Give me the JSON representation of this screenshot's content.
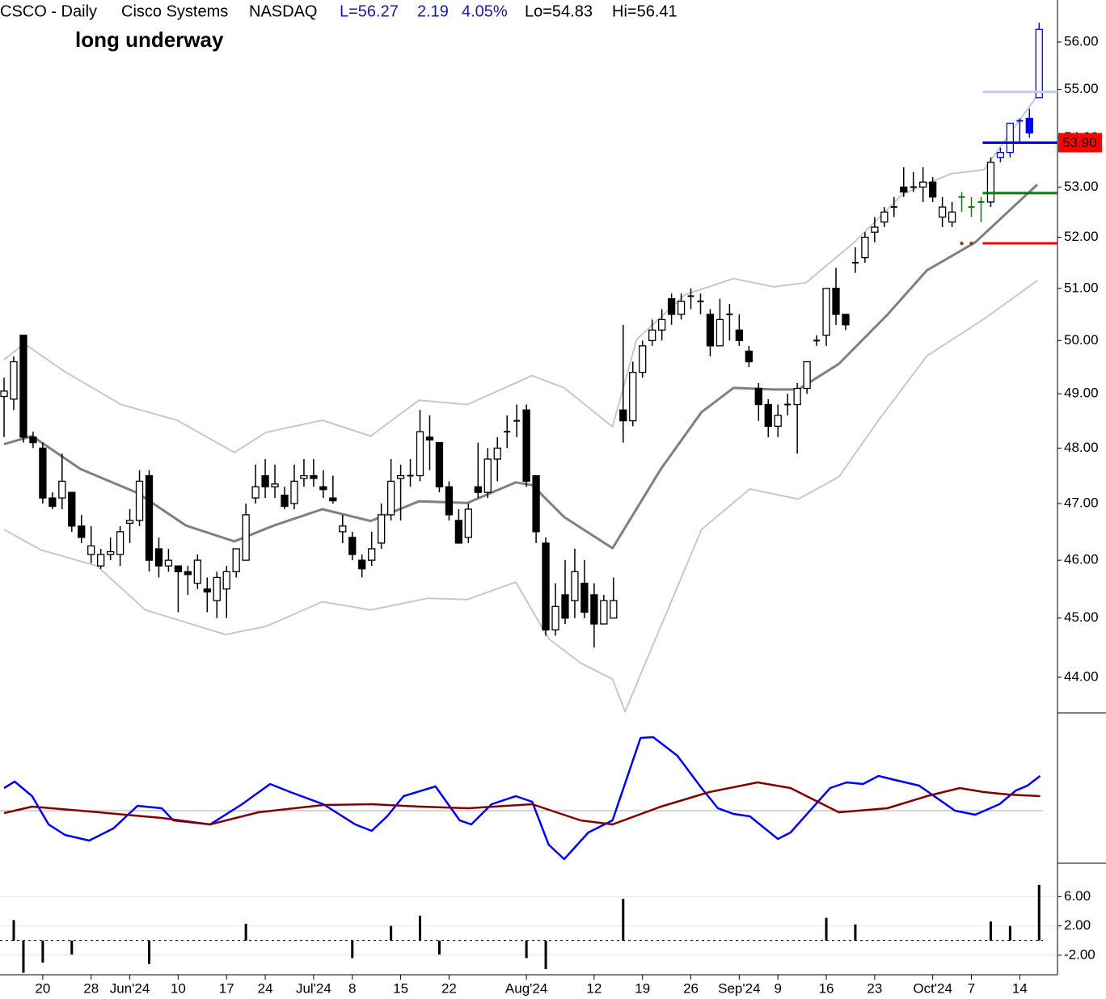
{
  "chart_data": {
    "type": "candlestick",
    "header": {
      "symbol": "CSCO - Daily",
      "name": "Cisco Systems",
      "exchange": "NASDAQ",
      "last": "L=56.27",
      "change": "2.19",
      "change_pct": "4.05%",
      "low": "Lo=54.83",
      "high": "Hi=56.41"
    },
    "annotation": "long underway",
    "log_scale": true,
    "xlim": [
      -0.42,
      108.9
    ],
    "xticks": [
      {
        "value": 4,
        "label": "20"
      },
      {
        "value": 9,
        "label": "28"
      },
      {
        "value": 13,
        "label": "Jun'24"
      },
      {
        "value": 18,
        "label": "10"
      },
      {
        "value": 23,
        "label": "17"
      },
      {
        "value": 27,
        "label": "24"
      },
      {
        "value": 32,
        "label": "Jul'24"
      },
      {
        "value": 36,
        "label": "8"
      },
      {
        "value": 41,
        "label": "15"
      },
      {
        "value": 46,
        "label": "22"
      },
      {
        "value": 54,
        "label": "Aug'24"
      },
      {
        "value": 61,
        "label": "12"
      },
      {
        "value": 66,
        "label": "19"
      },
      {
        "value": 71,
        "label": "26"
      },
      {
        "value": 76,
        "label": "Sep'24"
      },
      {
        "value": 80,
        "label": "9"
      },
      {
        "value": 85,
        "label": "16"
      },
      {
        "value": 90,
        "label": "23"
      },
      {
        "value": 96,
        "label": "Oct'24"
      },
      {
        "value": 100,
        "label": "7"
      },
      {
        "value": 105,
        "label": "14"
      }
    ],
    "ylim": [
      43.41,
      56.9
    ],
    "yticks": [
      {
        "value": 44,
        "label": "44.00"
      },
      {
        "value": 45,
        "label": "45.00"
      },
      {
        "value": 46,
        "label": "46.00"
      },
      {
        "value": 47,
        "label": "47.00"
      },
      {
        "value": 48,
        "label": "48.00"
      },
      {
        "value": 49,
        "label": "49.00"
      },
      {
        "value": 50,
        "label": "50.00"
      },
      {
        "value": 51,
        "label": "51.00"
      },
      {
        "value": 52,
        "label": "52.00"
      },
      {
        "value": 53,
        "label": "53.00"
      },
      {
        "value": 54,
        "label": "54.00"
      },
      {
        "value": 55,
        "label": "55.00"
      },
      {
        "value": 56,
        "label": "56.00"
      }
    ],
    "open": [
      48.95,
      48.9,
      50.1,
      48.2,
      48.0,
      47.1,
      47.1,
      47.2,
      46.6,
      46.1,
      45.9,
      46.1,
      46.1,
      46.65,
      46.7,
      47.5,
      46.2,
      45.9,
      45.9,
      45.8,
      45.6,
      45.5,
      45.3,
      45.5,
      45.8,
      46.0,
      47.1,
      47.5,
      47.3,
      47.15,
      47.0,
      47.45,
      47.5,
      47.3,
      47.1,
      46.5,
      46.4,
      46.0,
      46.0,
      46.3,
      46.8,
      47.45,
      47.5,
      47.5,
      48.2,
      48.1,
      47.3,
      46.7,
      46.4,
      47.3,
      47.2,
      47.8,
      48.3,
      48.5,
      48.7,
      47.5,
      46.3,
      44.8,
      45.4,
      45.3,
      45.6,
      45.4,
      44.9,
      45.0,
      48.7,
      48.5,
      49.4,
      50.0,
      50.2,
      50.8,
      50.5,
      50.85,
      50.75,
      50.5,
      49.9,
      50.5,
      50.2,
      49.8,
      49.1,
      48.8,
      48.4,
      48.8,
      48.8,
      49.1,
      50.0,
      50.1,
      51.0,
      50.5,
      51.5,
      51.6,
      52.1,
      52.3,
      52.6,
      53.0,
      53.0,
      53.0,
      53.1,
      52.4,
      52.3,
      52.8,
      52.6,
      52.7,
      52.7,
      53.6,
      53.7,
      54.35,
      54.4,
      54.83
    ],
    "high": [
      49.3,
      49.7,
      50.1,
      48.3,
      48.1,
      47.2,
      47.9,
      47.2,
      46.8,
      46.6,
      46.2,
      46.4,
      46.6,
      46.9,
      47.6,
      47.6,
      46.4,
      46.2,
      45.9,
      45.9,
      46.1,
      45.7,
      45.8,
      45.9,
      46.2,
      47.0,
      47.7,
      47.8,
      47.7,
      47.3,
      47.7,
      47.8,
      47.8,
      47.6,
      47.5,
      46.8,
      46.5,
      46.1,
      46.5,
      47.0,
      47.8,
      47.7,
      47.8,
      48.7,
      48.6,
      48.1,
      47.4,
      46.9,
      47.0,
      48.1,
      48.0,
      48.2,
      48.6,
      48.8,
      48.8,
      47.5,
      46.4,
      45.6,
      46.0,
      46.2,
      46.0,
      45.6,
      45.4,
      45.7,
      50.3,
      49.6,
      50.0,
      50.4,
      50.6,
      50.9,
      50.9,
      51.0,
      50.9,
      50.6,
      50.8,
      50.7,
      50.5,
      49.9,
      49.2,
      48.9,
      48.8,
      49.0,
      49.2,
      49.6,
      50.1,
      51.0,
      51.4,
      50.5,
      51.8,
      52.1,
      52.4,
      52.6,
      52.8,
      53.4,
      53.3,
      53.4,
      53.2,
      52.8,
      52.7,
      52.9,
      52.8,
      52.8,
      53.6,
      53.8,
      54.3,
      54.4,
      54.6,
      56.41
    ],
    "low": [
      48.2,
      48.7,
      48.1,
      48.0,
      47.0,
      46.9,
      46.9,
      46.5,
      46.3,
      45.95,
      45.85,
      46.0,
      45.9,
      46.3,
      46.6,
      45.8,
      45.7,
      45.8,
      45.1,
      45.4,
      45.5,
      45.1,
      45.0,
      45.0,
      45.7,
      46.0,
      47.0,
      47.1,
      47.1,
      46.9,
      46.9,
      47.3,
      47.3,
      47.1,
      47.0,
      46.3,
      46.0,
      45.7,
      45.9,
      46.2,
      46.7,
      46.7,
      47.3,
      47.4,
      47.6,
      47.2,
      46.7,
      46.3,
      46.3,
      47.1,
      47.1,
      47.4,
      48.0,
      48.2,
      47.3,
      46.3,
      44.7,
      44.7,
      44.9,
      45.0,
      45.0,
      44.5,
      44.9,
      45.0,
      48.1,
      48.4,
      49.3,
      49.9,
      50.0,
      50.3,
      50.4,
      50.6,
      50.5,
      49.7,
      49.9,
      50.0,
      49.9,
      49.5,
      48.5,
      48.2,
      48.2,
      48.6,
      47.9,
      49.0,
      49.9,
      49.9,
      50.3,
      50.2,
      51.3,
      51.5,
      51.9,
      52.2,
      52.4,
      52.8,
      52.9,
      52.7,
      52.7,
      52.2,
      52.2,
      52.5,
      52.4,
      52.3,
      52.6,
      53.5,
      53.6,
      53.9,
      54.0,
      54.83
    ],
    "close": [
      49.05,
      49.6,
      48.2,
      48.1,
      47.1,
      46.95,
      47.4,
      46.6,
      46.4,
      46.25,
      46.1,
      46.15,
      46.5,
      46.7,
      47.4,
      46.0,
      45.9,
      46.0,
      45.8,
      45.75,
      46.0,
      45.45,
      45.7,
      45.8,
      46.2,
      46.8,
      47.3,
      47.3,
      47.35,
      46.95,
      47.4,
      47.5,
      47.45,
      47.25,
      47.05,
      46.6,
      46.1,
      45.85,
      46.2,
      46.8,
      47.4,
      47.5,
      47.5,
      48.3,
      48.15,
      47.3,
      46.8,
      46.3,
      46.9,
      47.2,
      47.8,
      48.0,
      48.3,
      48.5,
      47.4,
      46.5,
      44.8,
      45.2,
      45.0,
      45.8,
      45.1,
      44.9,
      45.3,
      45.3,
      48.5,
      49.4,
      49.9,
      50.2,
      50.4,
      50.5,
      50.75,
      50.85,
      50.75,
      49.9,
      50.4,
      50.5,
      50.0,
      49.6,
      48.8,
      48.4,
      48.6,
      48.8,
      49.1,
      49.6,
      50.0,
      51.0,
      50.5,
      50.3,
      51.5,
      52.0,
      52.2,
      52.5,
      52.6,
      52.9,
      53.0,
      53.1,
      52.8,
      52.6,
      52.5,
      52.8,
      52.6,
      52.7,
      53.5,
      53.7,
      54.3,
      54.35,
      54.1,
      56.27
    ],
    "colors": [
      "#000000",
      "#000000",
      "#000000",
      "#000000",
      "#000000",
      "#000000",
      "#000000",
      "#000000",
      "#000000",
      "#000000",
      "#000000",
      "#000000",
      "#000000",
      "#000000",
      "#000000",
      "#000000",
      "#000000",
      "#000000",
      "#000000",
      "#000000",
      "#000000",
      "#000000",
      "#000000",
      "#000000",
      "#000000",
      "#000000",
      "#000000",
      "#000000",
      "#000000",
      "#000000",
      "#000000",
      "#000000",
      "#000000",
      "#000000",
      "#000000",
      "#000000",
      "#000000",
      "#000000",
      "#000000",
      "#000000",
      "#000000",
      "#000000",
      "#000000",
      "#000000",
      "#000000",
      "#000000",
      "#000000",
      "#000000",
      "#000000",
      "#000000",
      "#000000",
      "#000000",
      "#000000",
      "#000000",
      "#000000",
      "#000000",
      "#000000",
      "#000000",
      "#000000",
      "#000000",
      "#000000",
      "#000000",
      "#000000",
      "#000000",
      "#000000",
      "#000000",
      "#000000",
      "#000000",
      "#000000",
      "#000000",
      "#000000",
      "#000000",
      "#000000",
      "#000000",
      "#000000",
      "#000000",
      "#000000",
      "#000000",
      "#000000",
      "#000000",
      "#000000",
      "#000000",
      "#000000",
      "#000000",
      "#000000",
      "#000000",
      "#000000",
      "#000000",
      "#000000",
      "#000000",
      "#000000",
      "#000000",
      "#000000",
      "#000000",
      "#000000",
      "#000000",
      "#000000",
      "#000000",
      "#000000",
      "#008000",
      "#008000",
      "#008000",
      "#000000",
      "#0000ff",
      "#0000ff",
      "#0000ff",
      "#0000ff",
      "#0000ff"
    ],
    "overlays": [
      {
        "color": "#c8c8c8",
        "line_width": 2,
        "x": [
          0,
          2.1,
          6.3,
          12.1,
          17.9,
          23.8,
          27.1,
          32.9,
          37.9,
          42.9,
          47.9,
          54.6,
          57.9,
          62.9,
          65.4,
          70.4,
          75.4,
          79.6,
          82.9,
          87.9,
          92.9,
          97.9,
          101.3,
          106.8
        ],
        "values": [
          49.64,
          49.94,
          49.41,
          48.8,
          48.51,
          47.92,
          48.29,
          48.51,
          48.22,
          48.88,
          48.8,
          49.34,
          49.11,
          48.39,
          50.02,
          50.88,
          51.19,
          51.03,
          51.11,
          51.9,
          52.86,
          53.27,
          53.35,
          54.87
        ]
      },
      {
        "color": "#c8c8c8",
        "line_width": 2,
        "x": [
          0,
          3.8,
          9.6,
          14.6,
          22.9,
          27.1,
          32.9,
          37.9,
          43.8,
          47.9,
          52.9,
          56.3,
          59.6,
          62.9,
          64.2,
          66.3,
          72.1,
          77.1,
          82.1,
          86.3,
          90.4,
          95.4,
          101.3,
          106.8
        ],
        "values": [
          46.54,
          46.18,
          45.9,
          45.14,
          44.72,
          44.86,
          45.28,
          45.14,
          45.34,
          45.32,
          45.62,
          44.65,
          44.24,
          43.97,
          43.43,
          44.24,
          46.54,
          47.26,
          47.08,
          47.48,
          48.51,
          49.71,
          50.41,
          51.15
        ]
      },
      {
        "color": "#808080",
        "line_width": 3,
        "x": [
          0,
          2.9,
          7.9,
          13.8,
          18.8,
          23.8,
          27.9,
          32.9,
          37.9,
          42.9,
          47.9,
          52.9,
          54.6,
          57.9,
          62.9,
          67.9,
          72.1,
          75.4,
          79.6,
          82.1,
          86.3,
          91.3,
          95.4,
          100.4,
          106.8
        ],
        "values": [
          48.07,
          48.22,
          47.62,
          47.19,
          46.61,
          46.33,
          46.61,
          46.9,
          46.69,
          47.04,
          47.01,
          47.38,
          47.33,
          46.76,
          46.21,
          47.62,
          48.66,
          49.11,
          49.08,
          49.08,
          49.56,
          50.49,
          51.35,
          51.9,
          53.05
        ]
      }
    ],
    "levels": [
      {
        "value": 54.95,
        "from": 102,
        "color": "#c8c8f0"
      },
      {
        "value": 53.9,
        "from": 102,
        "color": "#0000ff",
        "label": "53.90",
        "label_color": "#ff0000"
      },
      {
        "value": 52.88,
        "from": 102,
        "color": "#008000"
      },
      {
        "value": 51.88,
        "from": 102,
        "color": "#ff0000"
      }
    ],
    "dots": {
      "x": [
        99,
        100
      ],
      "values": [
        51.88,
        51.88
      ],
      "color": "#8b4513"
    },
    "oscillator": {
      "ylim": [
        -65,
        121
      ],
      "zero": 0,
      "series": [
        {
          "color": "#0000ff",
          "x": [
            0,
            1.1,
            2.9,
            4.6,
            6.3,
            8.8,
            11.3,
            13.8,
            16.3,
            17.5,
            21.3,
            24.6,
            27.5,
            29.6,
            33,
            36.3,
            38,
            39.6,
            41.3,
            44.6,
            47.1,
            48.3,
            50.4,
            52.9,
            54.6,
            56.3,
            57.9,
            60.4,
            62.9,
            65.8,
            67.1,
            69.6,
            72.1,
            73.8,
            75.4,
            77.1,
            80,
            81.3,
            85.4,
            87.1,
            88.8,
            90.4,
            92.1,
            94.6,
            98.3,
            100.4,
            102.9,
            104.6,
            105.8,
            107.1
          ],
          "values": [
            28,
            36,
            18,
            -17,
            -30,
            -37,
            -22,
            6,
            3,
            -12,
            -17,
            8,
            33,
            23,
            8,
            -17,
            -25,
            -7,
            18,
            30,
            -12,
            -17,
            8,
            18,
            11,
            -42,
            -60,
            -27,
            -12,
            90,
            91,
            68,
            28,
            3,
            -4,
            -7,
            -35,
            -27,
            28,
            35,
            33,
            43,
            38,
            31,
            0,
            -5,
            8,
            25,
            31,
            43
          ]
        },
        {
          "color": "#800000",
          "x": [
            0,
            2.9,
            7.9,
            16.3,
            21.3,
            26.3,
            33,
            38,
            43,
            48,
            54.6,
            59.6,
            62.9,
            67.9,
            72.9,
            77.9,
            81.3,
            86.3,
            91.3,
            95.4,
            98.8,
            101.3,
            103.8,
            107.1
          ],
          "values": [
            -3,
            5,
            0,
            -9,
            -17,
            -2,
            7,
            8,
            5,
            3,
            8,
            -12,
            -17,
            5,
            23,
            35,
            28,
            -2,
            3,
            18,
            28,
            23,
            20,
            18
          ]
        }
      ]
    },
    "histogram": {
      "ylim": [
        -4.67,
        10.56
      ],
      "yticks": [
        {
          "value": 6,
          "label": "6.00"
        },
        {
          "value": 2,
          "label": "2.00"
        },
        {
          "value": -2,
          "label": "-2.00"
        }
      ],
      "color": "#000000",
      "x": [
        1,
        2,
        4,
        7,
        15,
        25,
        36,
        40,
        43,
        45,
        54,
        56,
        64,
        85,
        88,
        102,
        104,
        107
      ],
      "values": [
        2.8,
        -4.4,
        -3,
        -1.9,
        -3.2,
        2.3,
        -2.4,
        2,
        3.4,
        -1.9,
        -2.4,
        -3.9,
        5.7,
        3.1,
        2.2,
        2.6,
        2,
        7.6
      ]
    }
  }
}
